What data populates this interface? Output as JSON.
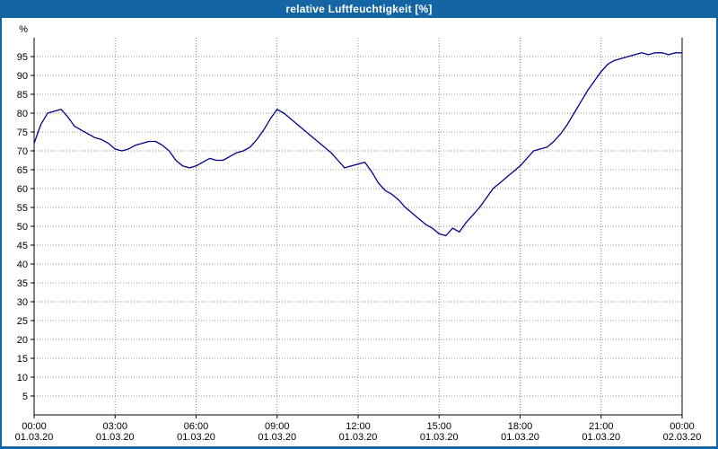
{
  "title_bar": {
    "title": "relative Luftfeuchtigkeit [%]"
  },
  "colors": {
    "title_bar_bg": "#1565A5",
    "line": "#00008B",
    "grid": "#888888",
    "axis": "#000000"
  },
  "chart_data": {
    "type": "line",
    "title": "relative Luftfeuchtigkeit [%]",
    "xlabel": "",
    "ylabel": "%",
    "grid": true,
    "legend_position": "none",
    "line_color": "#00008B",
    "ylim": [
      0,
      100
    ],
    "y_ticks": [
      5,
      10,
      15,
      20,
      25,
      30,
      35,
      40,
      45,
      50,
      55,
      60,
      65,
      70,
      75,
      80,
      85,
      90,
      95
    ],
    "x_range_hours": [
      0,
      24
    ],
    "x_grid_hours": [
      3,
      6,
      9,
      12,
      15,
      18,
      21
    ],
    "x_ticks": [
      {
        "hour": 0,
        "time": "00:00",
        "date": "01.03.20"
      },
      {
        "hour": 3,
        "time": "03:00",
        "date": "01.03.20"
      },
      {
        "hour": 6,
        "time": "06:00",
        "date": "01.03.20"
      },
      {
        "hour": 9,
        "time": "09:00",
        "date": "01.03.20"
      },
      {
        "hour": 12,
        "time": "12:00",
        "date": "01.03.20"
      },
      {
        "hour": 15,
        "time": "15:00",
        "date": "01.03.20"
      },
      {
        "hour": 18,
        "time": "18:00",
        "date": "01.03.20"
      },
      {
        "hour": 21,
        "time": "21:00",
        "date": "01.03.20"
      },
      {
        "hour": 24,
        "time": "00:00",
        "date": "02.03.20"
      }
    ],
    "x_start_hour": 0,
    "x_step_hours": 0.25,
    "values": [
      72,
      77,
      80,
      80.5,
      81,
      79,
      76.5,
      75.5,
      74.5,
      73.5,
      73,
      72,
      70.5,
      70,
      70.5,
      71.5,
      72,
      72.5,
      72.5,
      71.5,
      70,
      67.5,
      66,
      65.5,
      66,
      67,
      68,
      67.5,
      67.5,
      68.5,
      69.5,
      70,
      71,
      73,
      75.5,
      78.5,
      81,
      80,
      78.5,
      77,
      75.5,
      74,
      72.5,
      71,
      69.5,
      67.5,
      65.5,
      66,
      66.5,
      67,
      64.5,
      61.5,
      59.5,
      58.5,
      57,
      55,
      53.5,
      52,
      50.5,
      49.5,
      48,
      47.5,
      49.5,
      48.5,
      51,
      53,
      55,
      57.5,
      60,
      61.5,
      63,
      64.5,
      66,
      68,
      70,
      70.5,
      71,
      72.5,
      74.5,
      77,
      80,
      83,
      86,
      88.5,
      91,
      93,
      94,
      94.5,
      95,
      95.5,
      96,
      95.5,
      96,
      96,
      95.5,
      96,
      96
    ]
  }
}
